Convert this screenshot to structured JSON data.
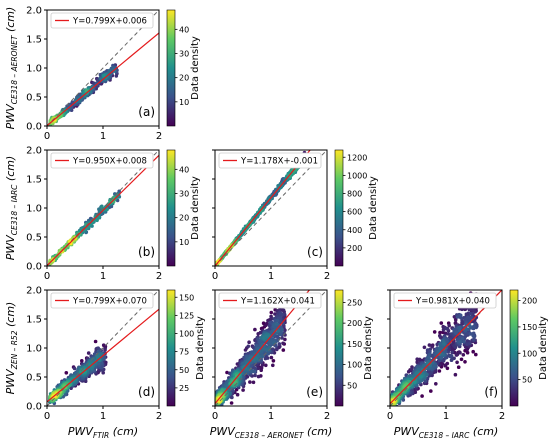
{
  "chart_data": [
    {
      "type": "scatter",
      "panel": "(a)",
      "xlabel": "",
      "xlabel_sub": "",
      "ylabel": "PWV",
      "ylabel_sub": "CE318 – AERONET",
      "ylabel_unit": " (cm)",
      "xlim": [
        0,
        2
      ],
      "ylim": [
        0,
        2
      ],
      "xticks": [
        "0",
        "1",
        "2"
      ],
      "yticks": [
        "0.0",
        "0.5",
        "1.0",
        "1.5",
        "2.0"
      ],
      "fit_label": "Y=0.799X+0.006",
      "fit": {
        "slope": 0.799,
        "intercept": 0.006
      },
      "colorbar": {
        "label": "Data density",
        "ticks": [
          10,
          20,
          30,
          40
        ],
        "max": 48
      },
      "points": {
        "xmin": 0.05,
        "xmax": 1.25,
        "spread": 0.04,
        "count": 380,
        "seed": 11
      }
    },
    {
      "type": "scatter",
      "panel": "(b)",
      "xlabel": "",
      "xlabel_sub": "",
      "ylabel": "PWV",
      "ylabel_sub": "CE318 – IARC",
      "ylabel_unit": " (cm)",
      "xlim": [
        0,
        2
      ],
      "ylim": [
        0,
        2
      ],
      "xticks": [
        "0",
        "1",
        "2"
      ],
      "yticks": [
        "0.0",
        "0.5",
        "1.0",
        "1.5",
        "2.0"
      ],
      "fit_label": "Y=0.950X+0.008",
      "fit": {
        "slope": 0.95,
        "intercept": 0.008
      },
      "colorbar": {
        "label": "Data density",
        "ticks": [
          10,
          20,
          30,
          40
        ],
        "max": 48
      },
      "points": {
        "xmin": 0.05,
        "xmax": 1.3,
        "spread": 0.03,
        "count": 320,
        "seed": 22
      }
    },
    {
      "type": "scatter",
      "panel": "(c)",
      "xlabel": "",
      "xlabel_sub": "",
      "ylabel": "",
      "ylabel_sub": "",
      "ylabel_unit": "",
      "xlim": [
        0,
        2
      ],
      "ylim": [
        0,
        2
      ],
      "xticks": [
        "0",
        "1",
        "2"
      ],
      "yticks": [
        "",
        "",
        "",
        "",
        ""
      ],
      "fit_label": "Y=1.178X+-0.001",
      "fit": {
        "slope": 1.178,
        "intercept": -0.001
      },
      "colorbar": {
        "label": "Data density",
        "ticks": [
          200,
          400,
          600,
          800,
          1000,
          1200
        ],
        "max": 1280
      },
      "points": {
        "xmin": 0.02,
        "xmax": 1.6,
        "spread": 0.015,
        "count": 900,
        "seed": 33
      }
    },
    {
      "type": "scatter",
      "panel": "(d)",
      "xlabel": "PWV",
      "xlabel_sub": "FTIR",
      "xlabel_unit": " (cm)",
      "ylabel": "PWV",
      "ylabel_sub": "ZEN – R52",
      "ylabel_unit": " (cm)",
      "xlim": [
        0,
        2
      ],
      "ylim": [
        0,
        2
      ],
      "xticks": [
        "0",
        "1",
        "2"
      ],
      "yticks": [
        "0.0",
        "0.5",
        "1.0",
        "1.5",
        "2.0"
      ],
      "fit_label": "Y=0.799X+0.070",
      "fit": {
        "slope": 0.799,
        "intercept": 0.07
      },
      "colorbar": {
        "label": "Data density",
        "ticks": [
          25,
          50,
          75,
          100,
          125,
          150
        ],
        "max": 160
      },
      "points": {
        "xmin": 0.05,
        "xmax": 1.05,
        "spread": 0.08,
        "count": 700,
        "seed": 44
      }
    },
    {
      "type": "scatter",
      "panel": "(e)",
      "xlabel": "PWV",
      "xlabel_sub": "CE318 – AERONET",
      "xlabel_unit": " (cm)",
      "ylabel": "",
      "ylabel_sub": "",
      "ylabel_unit": "",
      "xlim": [
        0,
        2
      ],
      "ylim": [
        0,
        2
      ],
      "xticks": [
        "0",
        "1",
        "2"
      ],
      "yticks": [
        "",
        "",
        "",
        "",
        ""
      ],
      "fit_label": "Y=1.162X+0.041",
      "fit": {
        "slope": 1.162,
        "intercept": 0.041
      },
      "colorbar": {
        "label": "Data density",
        "ticks": [
          50,
          100,
          150,
          200,
          250
        ],
        "max": 280
      },
      "points": {
        "xmin": 0.02,
        "xmax": 1.25,
        "spread": 0.14,
        "count": 1100,
        "seed": 55
      }
    },
    {
      "type": "scatter",
      "panel": "(f)",
      "xlabel": "PWV",
      "xlabel_sub": "CE318 – IARC",
      "xlabel_unit": " (cm)",
      "ylabel": "",
      "ylabel_sub": "",
      "ylabel_unit": "",
      "xlim": [
        0,
        2
      ],
      "ylim": [
        0,
        2
      ],
      "xticks": [
        "0",
        "1",
        "2"
      ],
      "yticks": [
        "",
        "",
        "",
        "",
        ""
      ],
      "fit_label": "Y=0.981X+0.040",
      "fit": {
        "slope": 0.981,
        "intercept": 0.04
      },
      "colorbar": {
        "label": "Data density",
        "ticks": [
          50,
          100,
          150,
          200
        ],
        "max": 220
      },
      "points": {
        "xmin": 0.02,
        "xmax": 1.55,
        "spread": 0.13,
        "count": 1100,
        "seed": 66
      }
    }
  ],
  "style": {
    "fit_color": "#e41a1c",
    "identity_color": "#666666",
    "colormap": [
      "#440154",
      "#3b528b",
      "#21908d",
      "#5dc963",
      "#fde725"
    ]
  }
}
